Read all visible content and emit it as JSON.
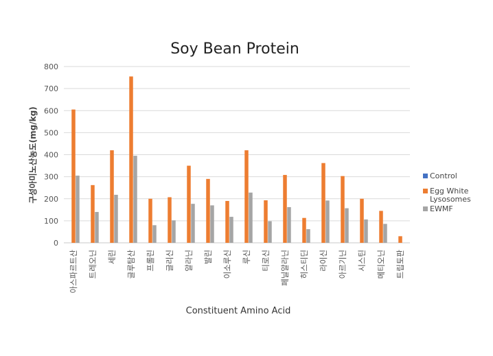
{
  "chart_data": {
    "type": "bar",
    "title": "Soy Bean Protein",
    "xlabel": "Constituent Amino Acid",
    "ylabel": "구성아미노산농도(mg/kg)",
    "ylim": [
      0,
      800
    ],
    "yticks": [
      0,
      100,
      200,
      300,
      400,
      500,
      600,
      700,
      800
    ],
    "grid": true,
    "legend_position": "right",
    "categories": [
      "아스파르트산",
      "트레오닌",
      "세린",
      "글루탐산",
      "프롤린",
      "글리신",
      "알라닌",
      "발린",
      "이소루신",
      "루신",
      "티로신",
      "페닐알라닌",
      "히스티딘",
      "라이신",
      "아르기닌",
      "시스틴",
      "메티오닌",
      "트립토판"
    ],
    "series": [
      {
        "name": "Control",
        "color": "#4472c4",
        "values": [
          0,
          0,
          0,
          0,
          0,
          0,
          0,
          0,
          0,
          0,
          0,
          0,
          0,
          0,
          0,
          0,
          0,
          0
        ]
      },
      {
        "name": "Egg White Lysosomes",
        "color": "#ed7d31",
        "values": [
          605,
          262,
          420,
          755,
          200,
          207,
          350,
          290,
          190,
          420,
          193,
          308,
          113,
          362,
          303,
          200,
          145,
          30
        ]
      },
      {
        "name": "EWMF",
        "color": "#a5a5a5",
        "values": [
          305,
          140,
          218,
          395,
          80,
          102,
          177,
          170,
          118,
          228,
          98,
          162,
          62,
          192,
          157,
          106,
          86,
          0
        ]
      }
    ]
  }
}
